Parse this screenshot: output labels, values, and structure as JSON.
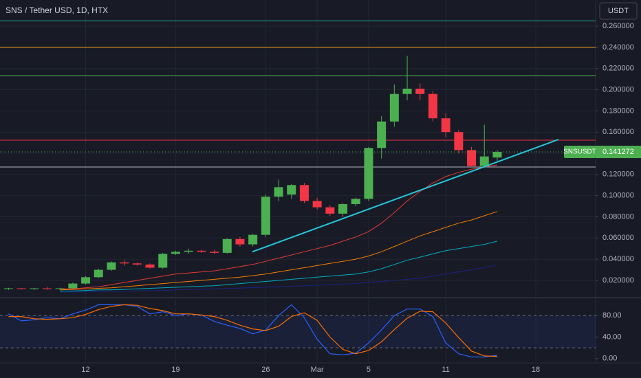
{
  "chart_data": [
    {
      "type": "candlestick",
      "title": "SNS / Tether USD, 1D, HTX",
      "currency": "USDT",
      "categories": [
        null,
        null,
        null,
        null,
        null,
        null,
        "12",
        null,
        null,
        null,
        null,
        null,
        null,
        "19",
        null,
        null,
        null,
        null,
        null,
        null,
        "26",
        null,
        null,
        null,
        "Mar",
        null,
        null,
        null,
        "5",
        null,
        null,
        null,
        null,
        null,
        "11",
        null,
        null,
        null,
        null,
        null,
        null,
        "18",
        null,
        null,
        null,
        null
      ],
      "open": [
        0.012,
        0.0125,
        0.012,
        0.0125,
        0.012,
        0.0125,
        0.017,
        0.023,
        0.03,
        0.037,
        0.036,
        0.035,
        0.032,
        0.045,
        0.047,
        0.048,
        0.047,
        0.046,
        0.059,
        0.054,
        0.063,
        0.099,
        0.101,
        0.11,
        0.095,
        0.089,
        0.083,
        0.092,
        0.097,
        0.145,
        0.17,
        0.196,
        0.201,
        0.196,
        0.173,
        0.16,
        0.143,
        0.128,
        0.136,
        null,
        null,
        null,
        null,
        null,
        null,
        null
      ],
      "high": [
        0.013,
        0.013,
        0.013,
        0.014,
        0.013,
        0.018,
        0.024,
        0.031,
        0.038,
        0.039,
        0.037,
        0.036,
        0.046,
        0.048,
        0.05,
        0.049,
        0.049,
        0.06,
        0.061,
        0.064,
        0.101,
        0.115,
        0.111,
        0.112,
        0.098,
        0.091,
        0.093,
        0.098,
        0.146,
        0.175,
        0.205,
        0.232,
        0.206,
        0.199,
        0.178,
        0.162,
        0.146,
        0.167,
        0.143,
        null,
        null,
        null,
        null,
        null,
        null,
        null
      ],
      "low": [
        0.011,
        0.0115,
        0.011,
        0.011,
        0.011,
        0.012,
        0.016,
        0.022,
        0.029,
        0.034,
        0.034,
        0.031,
        0.031,
        0.044,
        0.045,
        0.046,
        0.045,
        0.045,
        0.052,
        0.052,
        0.061,
        0.095,
        0.097,
        0.093,
        0.087,
        0.081,
        0.08,
        0.09,
        0.095,
        0.135,
        0.165,
        0.19,
        0.19,
        0.17,
        0.155,
        0.14,
        0.127,
        0.126,
        0.133,
        null,
        null,
        null,
        null,
        null,
        null,
        null
      ],
      "close": [
        0.0125,
        0.012,
        0.0125,
        0.012,
        0.0125,
        0.017,
        0.023,
        0.03,
        0.037,
        0.036,
        0.035,
        0.032,
        0.045,
        0.047,
        0.048,
        0.047,
        0.046,
        0.059,
        0.054,
        0.063,
        0.099,
        0.108,
        0.11,
        0.095,
        0.089,
        0.083,
        0.092,
        0.097,
        0.145,
        0.17,
        0.196,
        0.201,
        0.196,
        0.173,
        0.16,
        0.143,
        0.128,
        0.137,
        0.141272,
        null,
        null,
        null,
        null,
        null,
        null,
        null
      ],
      "up_color": "#4caf50",
      "down_color": "#f23645",
      "lines": [
        {
          "color": "#e53935",
          "values": [
            null,
            null,
            null,
            null,
            0.012,
            0.012,
            0.013,
            0.014,
            0.016,
            0.018,
            0.02,
            0.022,
            0.024,
            0.026,
            0.027,
            0.028,
            0.029,
            0.031,
            0.033,
            0.035,
            0.038,
            0.041,
            0.044,
            0.047,
            0.05,
            0.053,
            0.057,
            0.061,
            0.066,
            0.074,
            0.084,
            0.095,
            0.104,
            0.112,
            0.118,
            0.122,
            0.125,
            0.127,
            0.129,
            null,
            null,
            null,
            null,
            null,
            null,
            null
          ]
        },
        {
          "color": "#f57c00",
          "values": [
            null,
            null,
            null,
            null,
            0.011,
            0.0115,
            0.012,
            0.0125,
            0.013,
            0.014,
            0.015,
            0.016,
            0.017,
            0.018,
            0.019,
            0.02,
            0.021,
            0.022,
            0.023,
            0.0245,
            0.026,
            0.028,
            0.03,
            0.032,
            0.034,
            0.036,
            0.038,
            0.04,
            0.043,
            0.047,
            0.052,
            0.057,
            0.062,
            0.066,
            0.07,
            0.074,
            0.077,
            0.081,
            0.085,
            null,
            null,
            null,
            null,
            null,
            null,
            null
          ]
        },
        {
          "color": "#00acc1",
          "values": [
            null,
            null,
            null,
            null,
            0.01,
            0.01,
            0.0105,
            0.011,
            0.011,
            0.0115,
            0.012,
            0.0125,
            0.013,
            0.0135,
            0.014,
            0.0145,
            0.015,
            0.016,
            0.017,
            0.018,
            0.019,
            0.02,
            0.021,
            0.022,
            0.023,
            0.024,
            0.025,
            0.026,
            0.028,
            0.031,
            0.035,
            0.039,
            0.042,
            0.045,
            0.048,
            0.05,
            0.052,
            0.054,
            0.057,
            null,
            null,
            null,
            null,
            null,
            null,
            null
          ]
        },
        {
          "color": "#1a237e",
          "values": [
            null,
            null,
            null,
            null,
            0.009,
            0.009,
            0.0092,
            0.0094,
            0.0096,
            0.0098,
            0.01,
            0.0103,
            0.0106,
            0.011,
            0.0113,
            0.0116,
            0.012,
            0.0124,
            0.0128,
            0.0132,
            0.0136,
            0.014,
            0.0145,
            0.015,
            0.0155,
            0.016,
            0.0165,
            0.017,
            0.018,
            0.019,
            0.02,
            0.021,
            0.022,
            0.024,
            0.026,
            0.028,
            0.03,
            0.032,
            0.035,
            null,
            null,
            null,
            null,
            null,
            null,
            null
          ]
        }
      ],
      "levels": [
        {
          "value": 0.265,
          "color": "#26a69a"
        },
        {
          "value": 0.24,
          "color": "#f7a21b"
        },
        {
          "value": 0.2133,
          "color": "#4caf50"
        },
        {
          "value": 0.1523,
          "color": "#f23645"
        },
        {
          "value": 0.127,
          "color": "#b2b5be"
        }
      ],
      "trendline": {
        "values": [
          0.047,
          0.153
        ],
        "color": "#26c6da"
      },
      "last_price": {
        "symbol": "SNSUSDT",
        "value": 0.141272,
        "color": "#4caf50"
      },
      "ylim": [
        0.0044,
        0.2847
      ],
      "yticks": [
        {
          "value": 0.02,
          "label": "0.020000"
        },
        {
          "value": 0.04,
          "label": "0.040000"
        },
        {
          "value": 0.06,
          "label": "0.060000"
        },
        {
          "value": 0.08,
          "label": "0.080000"
        },
        {
          "value": 0.1,
          "label": "0.100000"
        },
        {
          "value": 0.12,
          "label": "0.120000"
        },
        {
          "value": 0.14,
          "label": "0.140000"
        },
        {
          "value": 0.16,
          "label": "0.160000"
        },
        {
          "value": 0.18,
          "label": "0.180000"
        },
        {
          "value": 0.2,
          "label": "0.200000"
        },
        {
          "value": 0.22,
          "label": "0.220000"
        },
        {
          "value": 0.24,
          "label": "0.240000"
        },
        {
          "value": 0.26,
          "label": "0.260000"
        }
      ],
      "grid": true
    },
    {
      "type": "line",
      "series": [
        {
          "color": "#2962ff",
          "values": [
            83,
            70,
            72,
            76,
            74,
            83,
            90,
            100,
            100,
            100,
            97,
            83,
            87,
            80,
            83,
            81,
            69,
            62,
            56,
            46,
            53,
            80,
            100,
            76,
            36,
            9,
            7,
            10,
            29,
            53,
            80,
            92,
            92,
            78,
            29,
            9,
            3,
            3,
            6,
            null,
            null,
            null,
            null,
            null,
            null,
            null
          ]
        },
        {
          "color": "#ff6d00",
          "values": [
            78,
            78,
            74,
            73,
            74,
            76,
            82,
            91,
            97,
            100,
            99,
            93,
            89,
            83,
            83,
            81,
            78,
            71,
            62,
            55,
            52,
            60,
            78,
            85,
            71,
            40,
            17,
            9,
            15,
            31,
            54,
            75,
            88,
            87,
            66,
            39,
            14,
            5,
            4,
            null,
            null,
            null,
            null,
            null,
            null,
            null
          ]
        }
      ],
      "band": [
        20,
        80
      ],
      "ylim": [
        -8,
        112
      ],
      "yticks": [
        {
          "value": 0,
          "label": "0.00"
        },
        {
          "value": 40,
          "label": "40.00"
        },
        {
          "value": 80,
          "label": "80.00"
        }
      ]
    }
  ]
}
